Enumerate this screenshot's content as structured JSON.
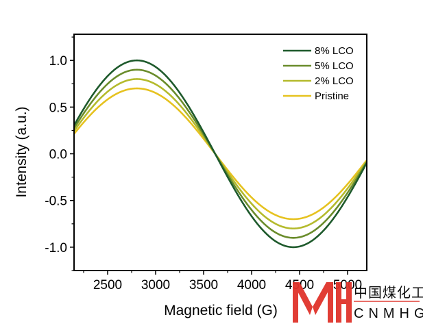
{
  "chart_data": {
    "type": "line",
    "title": "",
    "xlabel": "Magnetic field (G)",
    "ylabel": "Intensity (a.u.)",
    "xlim": [
      2150,
      5200
    ],
    "ylim": [
      -1.25,
      1.28
    ],
    "xticks": [
      2500,
      3000,
      3500,
      4000,
      4500,
      5000
    ],
    "xtick_labels": [
      "2500",
      "3000",
      "3500",
      "4000",
      "4500",
      "5000"
    ],
    "yticks": [
      1.0,
      0.5,
      0.0,
      -0.5,
      -1.0
    ],
    "ytick_labels": [
      "1.0",
      "0.5",
      "0.0",
      "-0.5",
      "-1.0"
    ],
    "grid": false,
    "legend_position": "top-right",
    "model": "y = amplitude * sin(2*pi*(zero_crossing - x) / period)",
    "zero_crossing": 3620,
    "period": 3260,
    "series": [
      {
        "name": "8% LCO",
        "amplitude": 1.0,
        "peak": [
          2805,
          1.0
        ],
        "trough": [
          4435,
          -1.0
        ],
        "color": "#1e5a2c"
      },
      {
        "name": "5% LCO",
        "amplitude": 0.9,
        "peak": [
          2805,
          0.9
        ],
        "trough": [
          4435,
          -0.9
        ],
        "color": "#6a8c2b"
      },
      {
        "name": "2% LCO",
        "amplitude": 0.8,
        "peak": [
          2805,
          0.8
        ],
        "trough": [
          4435,
          -0.8
        ],
        "color": "#b4ba2c"
      },
      {
        "name": "Pristine",
        "amplitude": 0.7,
        "peak": [
          2805,
          0.7
        ],
        "trough": [
          4435,
          -0.7
        ],
        "color": "#e6c21f"
      }
    ]
  },
  "watermark": {
    "logo": "MH",
    "text_cn": "中国煤化工",
    "text_en": "CNMHG",
    "color": "#e0332b"
  }
}
